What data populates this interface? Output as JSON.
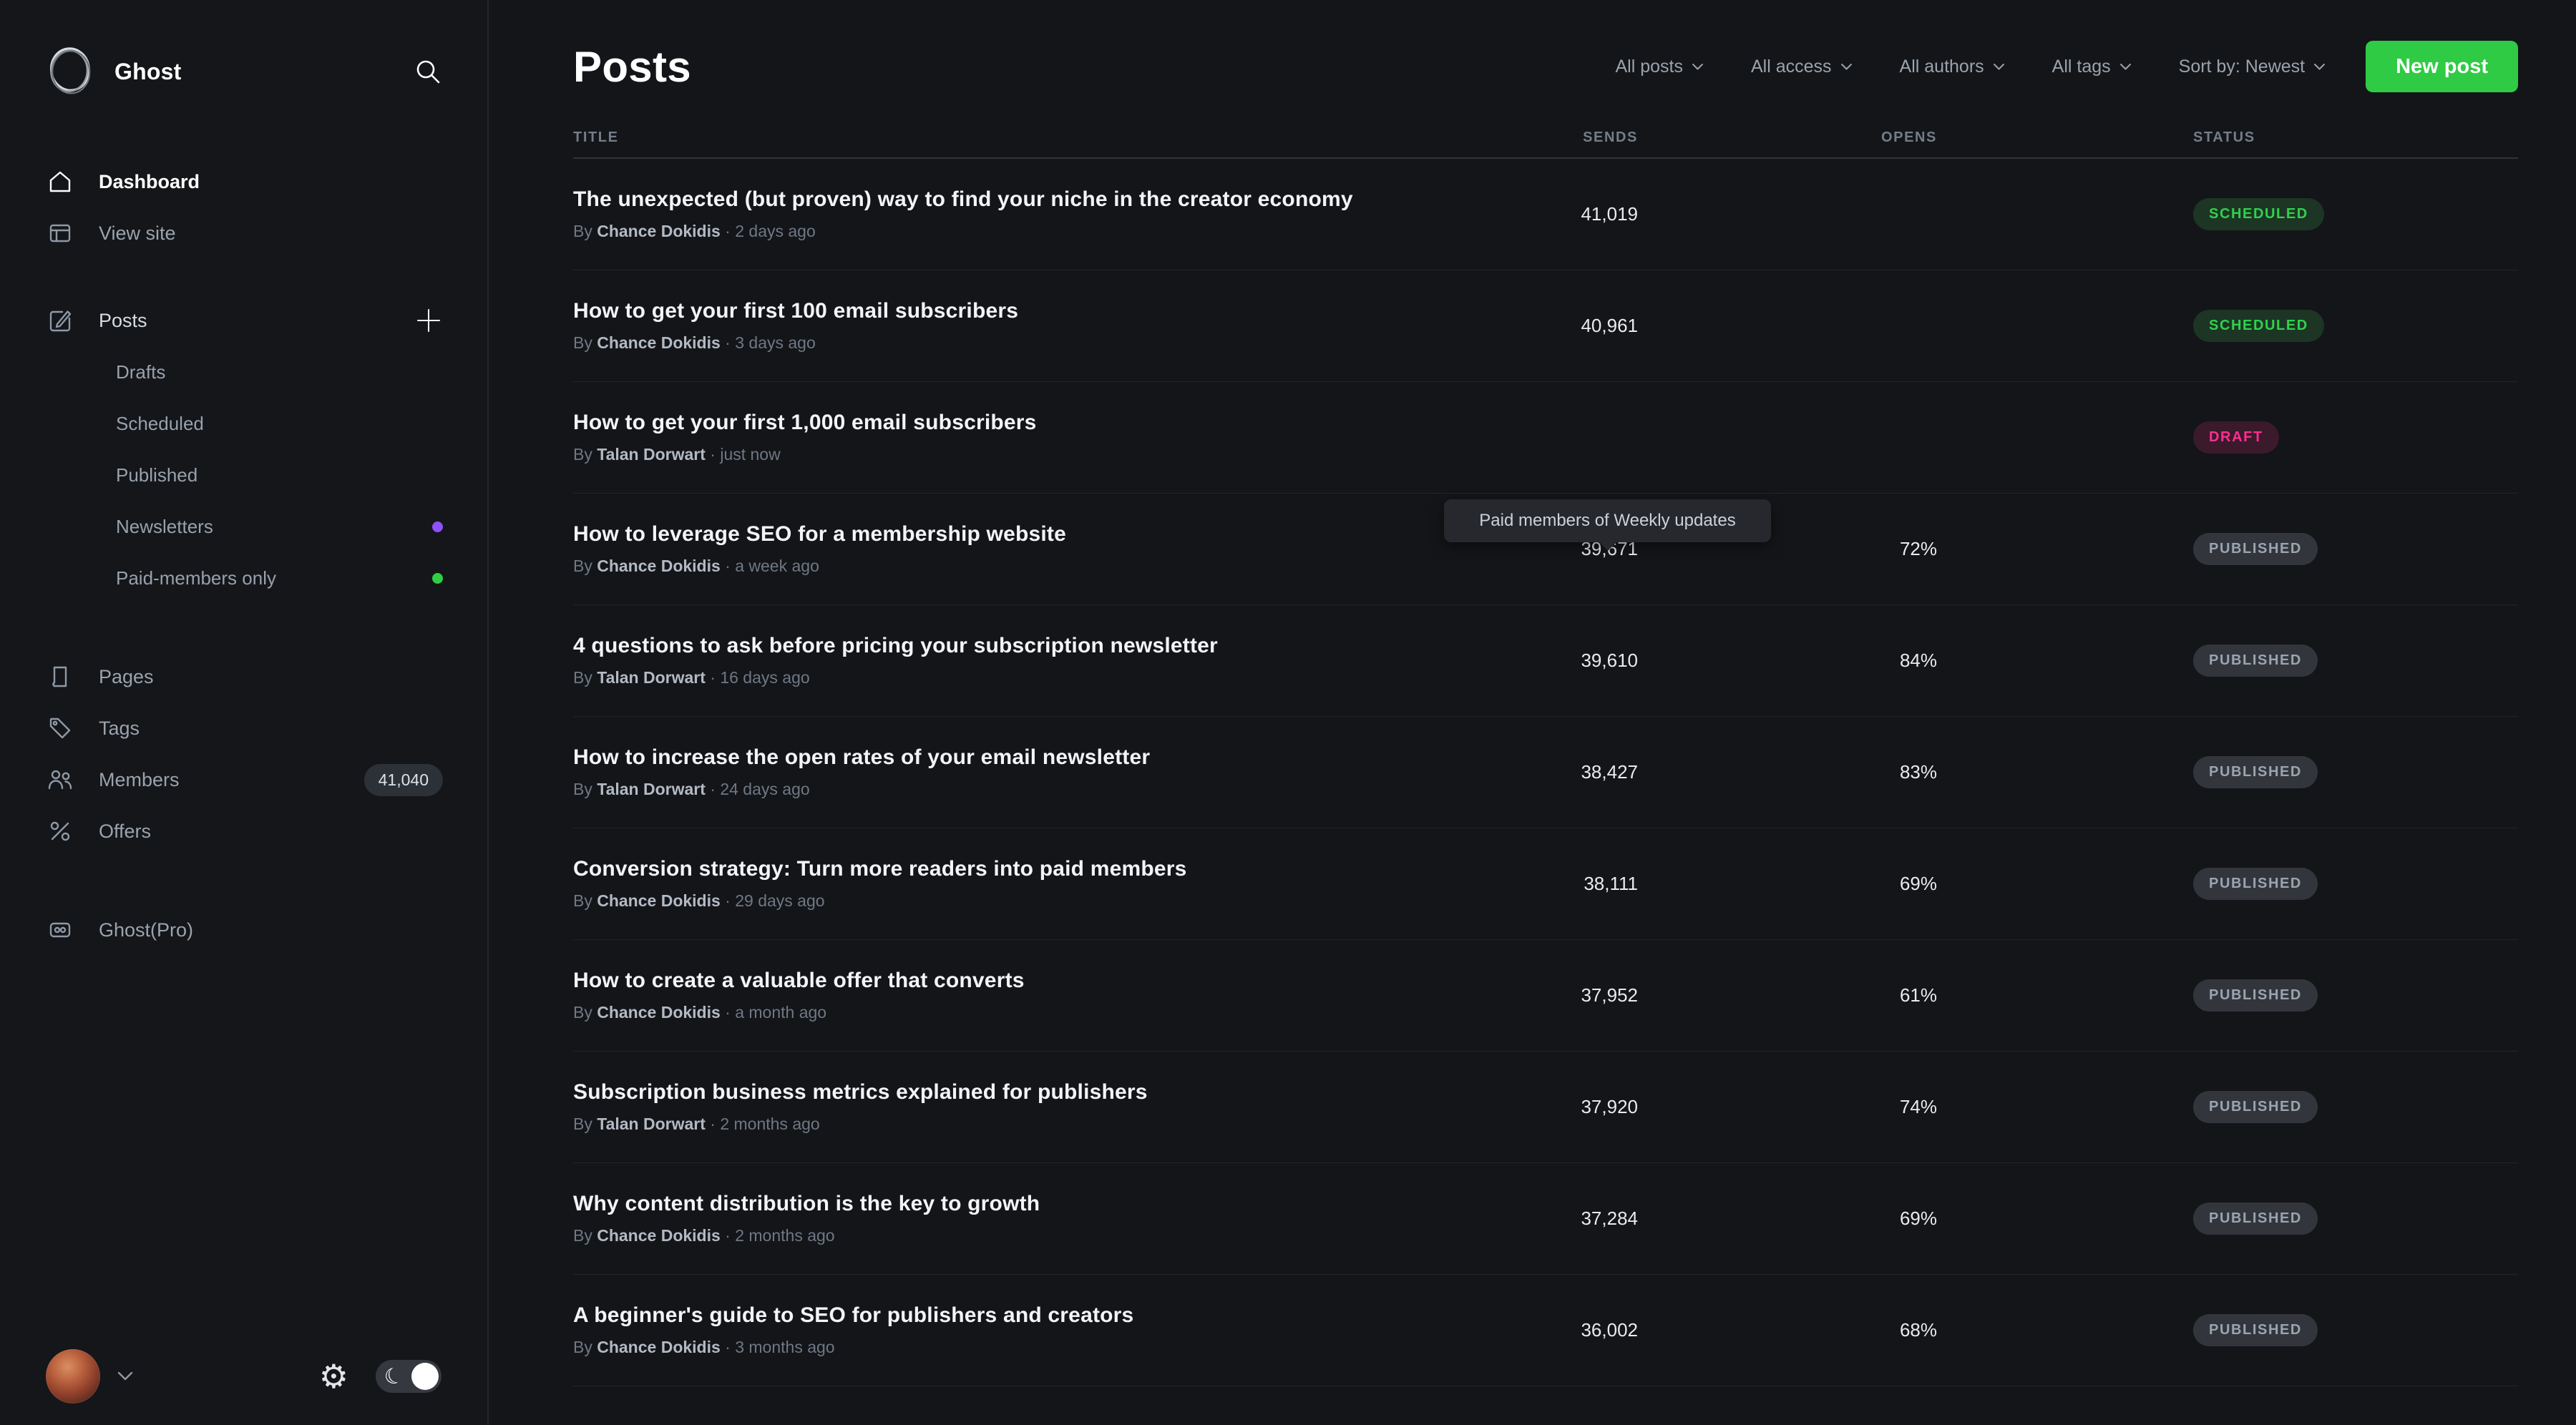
{
  "brand": "Ghost",
  "sidebar": {
    "dashboard": "Dashboard",
    "view_site": "View site",
    "posts": "Posts",
    "posts_sub": [
      "Drafts",
      "Scheduled",
      "Published",
      "Newsletters",
      "Paid-members only"
    ],
    "newsletters_dot_color": "#8e51ff",
    "paid_members_dot_color": "#30cf43",
    "pages": "Pages",
    "tags": "Tags",
    "members": "Members",
    "members_count": "41,040",
    "offers": "Offers",
    "ghost_pro": "Ghost(Pro)"
  },
  "header": {
    "title": "Posts",
    "filters": [
      "All posts",
      "All access",
      "All authors",
      "All tags",
      "Sort by: Newest"
    ],
    "new_post_label": "New post",
    "new_post_color": "#2fcb44"
  },
  "tooltip": "Paid members of Weekly updates",
  "table": {
    "headers": [
      "TITLE",
      "SENDS",
      "OPENS",
      "STATUS"
    ],
    "by_label": "By",
    "separator": "·",
    "status_styles": {
      "SCHEDULED": {
        "color": "#2fd24c",
        "bg": "#1d3524"
      },
      "DRAFT": {
        "color": "#ff2f8e",
        "bg": "#3a1a2b"
      },
      "PUBLISHED": {
        "color": "#9ba4b0",
        "bg": "#32363c"
      }
    },
    "rows": [
      {
        "title": "The unexpected (but proven) way to find your niche in the creator economy",
        "author": "Chance Dokidis",
        "date": "2 days ago",
        "sends": "41,019",
        "opens": "",
        "status": "SCHEDULED"
      },
      {
        "title": "How to get your first 100 email subscribers",
        "author": "Chance Dokidis",
        "date": "3 days ago",
        "sends": "40,961",
        "opens": "",
        "status": "SCHEDULED"
      },
      {
        "title": "How to get your first 1,000 email subscribers",
        "author": "Talan Dorwart",
        "date": "just now",
        "sends": "",
        "opens": "",
        "status": "DRAFT"
      },
      {
        "title": "How to leverage SEO for a membership website",
        "author": "Chance Dokidis",
        "date": "a week ago",
        "sends": "39,671",
        "opens": "72%",
        "status": "PUBLISHED"
      },
      {
        "title": "4 questions to ask before pricing your subscription newsletter",
        "author": "Talan Dorwart",
        "date": "16 days ago",
        "sends": "39,610",
        "opens": "84%",
        "status": "PUBLISHED"
      },
      {
        "title": "How to increase the open rates of your email newsletter",
        "author": "Talan Dorwart",
        "date": "24 days ago",
        "sends": "38,427",
        "opens": "83%",
        "status": "PUBLISHED"
      },
      {
        "title": "Conversion strategy: Turn more readers into paid members",
        "author": "Chance Dokidis",
        "date": "29 days ago",
        "sends": "38,111",
        "opens": "69%",
        "status": "PUBLISHED"
      },
      {
        "title": "How to create a valuable offer that converts",
        "author": "Chance Dokidis",
        "date": "a month ago",
        "sends": "37,952",
        "opens": "61%",
        "status": "PUBLISHED"
      },
      {
        "title": "Subscription business metrics explained for publishers",
        "author": "Talan Dorwart",
        "date": "2 months ago",
        "sends": "37,920",
        "opens": "74%",
        "status": "PUBLISHED"
      },
      {
        "title": "Why content distribution is the key to growth",
        "author": "Chance Dokidis",
        "date": "2 months ago",
        "sends": "37,284",
        "opens": "69%",
        "status": "PUBLISHED"
      },
      {
        "title": "A beginner's guide to SEO for publishers and creators",
        "author": "Chance Dokidis",
        "date": "3 months ago",
        "sends": "36,002",
        "opens": "68%",
        "status": "PUBLISHED"
      }
    ]
  }
}
